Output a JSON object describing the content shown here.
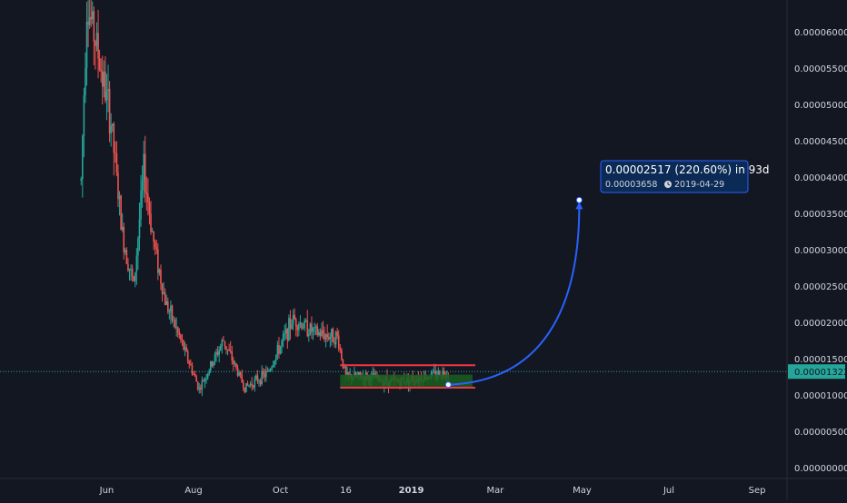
{
  "chart_data": {
    "type": "candlestick",
    "y_axis": {
      "ticks": [
        "0.00006000",
        "0.00005500",
        "0.00005000",
        "0.00004500",
        "0.00004000",
        "0.00003500",
        "0.00003000",
        "0.00002500",
        "0.00002000",
        "0.00001500",
        "0.00001000",
        "0.00000500",
        "0.00000000"
      ],
      "tick_values": [
        6e-05,
        5.5e-05,
        5e-05,
        4.5e-05,
        4e-05,
        3.5e-05,
        3e-05,
        2.5e-05,
        2e-05,
        1.5e-05,
        1e-05,
        5e-06,
        0
      ],
      "ylim": [
        0,
        6.45e-05
      ]
    },
    "x_axis": {
      "ticks": [
        {
          "label": "Jun",
          "date": "2018-06-01",
          "bold": false
        },
        {
          "label": "Aug",
          "date": "2018-08-01",
          "bold": false
        },
        {
          "label": "Oct",
          "date": "2018-10-01",
          "bold": false
        },
        {
          "label": "16",
          "date": "2018-11-16",
          "bold": false
        },
        {
          "label": "2019",
          "date": "2019-01-01",
          "bold": true
        },
        {
          "label": "Mar",
          "date": "2019-03-01",
          "bold": false
        },
        {
          "label": "May",
          "date": "2019-05-01",
          "bold": false
        },
        {
          "label": "Jul",
          "date": "2019-07-01",
          "bold": false
        },
        {
          "label": "Sep",
          "date": "2019-09-01",
          "bold": false
        }
      ],
      "xlim": [
        "2018-03-18",
        "2019-09-22"
      ]
    },
    "current_price": {
      "label": "0.00001322",
      "value": 1.322e-05
    },
    "series": [
      {
        "name": "",
        "type": "candlestick",
        "anchors": [
          {
            "date": "2018-05-14",
            "price": 3.95e-05
          },
          {
            "date": "2018-05-18",
            "price": 6.4e-05
          },
          {
            "date": "2018-05-25",
            "price": 5.8e-05
          },
          {
            "date": "2018-06-04",
            "price": 4.75e-05
          },
          {
            "date": "2018-06-12",
            "price": 3.2e-05
          },
          {
            "date": "2018-06-20",
            "price": 2.5e-05
          },
          {
            "date": "2018-06-27",
            "price": 4.1e-05
          },
          {
            "date": "2018-07-04",
            "price": 3.1e-05
          },
          {
            "date": "2018-07-12",
            "price": 2.3e-05
          },
          {
            "date": "2018-07-22",
            "price": 1.8e-05
          },
          {
            "date": "2018-08-05",
            "price": 1.08e-05
          },
          {
            "date": "2018-08-22",
            "price": 1.75e-05
          },
          {
            "date": "2018-09-06",
            "price": 1.1e-05
          },
          {
            "date": "2018-09-22",
            "price": 1.3e-05
          },
          {
            "date": "2018-10-10",
            "price": 2.05e-05
          },
          {
            "date": "2018-10-26",
            "price": 1.85e-05
          },
          {
            "date": "2018-11-10",
            "price": 1.8e-05
          },
          {
            "date": "2018-11-16",
            "price": 1.25e-05
          },
          {
            "date": "2018-12-01",
            "price": 1.25e-05
          },
          {
            "date": "2018-12-20",
            "price": 1.18e-05
          },
          {
            "date": "2019-01-10",
            "price": 1.25e-05
          },
          {
            "date": "2019-01-27",
            "price": 1.32e-05
          }
        ]
      }
    ],
    "annotations": {
      "resistance_line": {
        "start": "2018-11-12",
        "end": "2019-02-15",
        "price": 1.41e-05,
        "color": "#f23645"
      },
      "support_line": {
        "start": "2018-11-12",
        "end": "2019-02-15",
        "price": 1.1e-05,
        "color": "#f23645"
      },
      "support_zone": {
        "start": "2018-11-12",
        "end": "2019-02-13",
        "top": 1.28e-05,
        "bottom": 1.1e-05,
        "color": "#1b5e20"
      },
      "projection_arrow": {
        "from_date": "2019-01-27",
        "from_price": 1.141e-05,
        "to_date": "2019-04-29",
        "to_price": 3.658e-05,
        "color": "#2962ff"
      },
      "projection_note": {
        "title": "0.00002517 (220.60%) in 93d",
        "price": "0.00003658",
        "date": "2019-04-29"
      }
    }
  }
}
